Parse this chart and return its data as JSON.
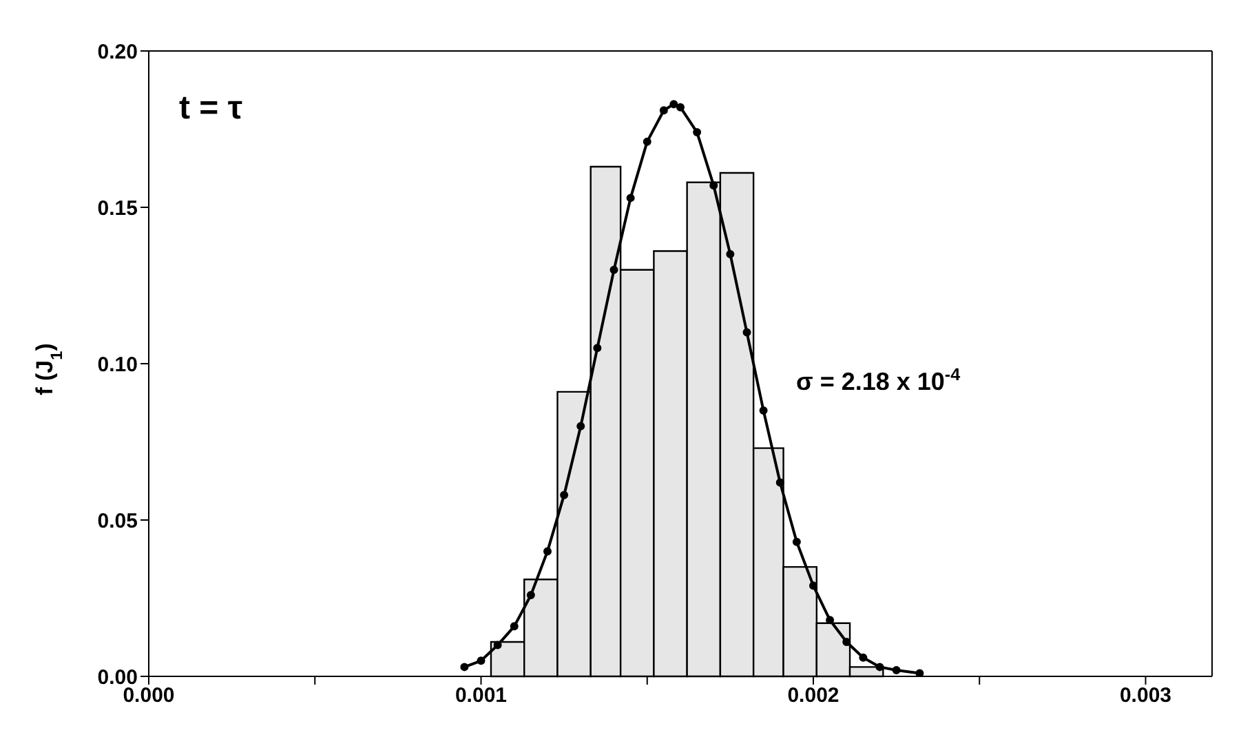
{
  "chart_data": {
    "type": "histogram",
    "ylabel": "f (J$_{1}$)",
    "annotations": [
      "t = τ",
      "σ = 2.18 x 10$^{-4}$"
    ],
    "bins": [
      0.00103,
      0.00113,
      0.00123,
      0.00133,
      0.00142,
      0.00152,
      0.00162,
      0.00172,
      0.00182,
      0.00191,
      0.00201,
      0.00211,
      0.00221
    ],
    "values": [
      0.011,
      0.031,
      0.091,
      0.163,
      0.13,
      0.136,
      0.158,
      0.161,
      0.073,
      0.035,
      0.017,
      0.003
    ],
    "color": "#e6e6e6",
    "series": [
      {
        "type": "line",
        "color": "#000000",
        "marker": "circle",
        "x": [
          0.00095,
          0.001,
          0.00105,
          0.0011,
          0.00115,
          0.0012,
          0.00125,
          0.0013,
          0.00135,
          0.0014,
          0.00145,
          0.0015,
          0.00155,
          0.00158,
          0.0016,
          0.00165,
          0.0017,
          0.00175,
          0.0018,
          0.00185,
          0.0019,
          0.00195,
          0.002,
          0.00205,
          0.0021,
          0.00215,
          0.0022,
          0.00225,
          0.00232
        ],
        "values": [
          0.003,
          0.005,
          0.01,
          0.016,
          0.026,
          0.04,
          0.058,
          0.08,
          0.105,
          0.13,
          0.153,
          0.171,
          0.181,
          0.183,
          0.182,
          0.174,
          0.157,
          0.135,
          0.11,
          0.085,
          0.062,
          0.043,
          0.029,
          0.018,
          0.011,
          0.006,
          0.003,
          0.002,
          0.001
        ]
      }
    ],
    "xlim": [
      0,
      0.0032
    ],
    "xticks": [
      {
        "value": 0,
        "label": "0.000"
      },
      {
        "value": 0.0005,
        "label": null
      },
      {
        "value": 0.001,
        "label": "0.001"
      },
      {
        "value": 0.0015,
        "label": null
      },
      {
        "value": 0.002,
        "label": "0.002"
      },
      {
        "value": 0.0025,
        "label": null
      },
      {
        "value": 0.003,
        "label": "0.003"
      }
    ],
    "ylim": [
      0,
      0.2
    ],
    "yticks": [
      {
        "value": 0,
        "label": "0.00"
      },
      {
        "value": 0.05,
        "label": "0.05"
      },
      {
        "value": 0.1,
        "label": "0.10"
      },
      {
        "value": 0.15,
        "label": "0.15"
      },
      {
        "value": 0.2,
        "label": "0.20"
      }
    ]
  }
}
